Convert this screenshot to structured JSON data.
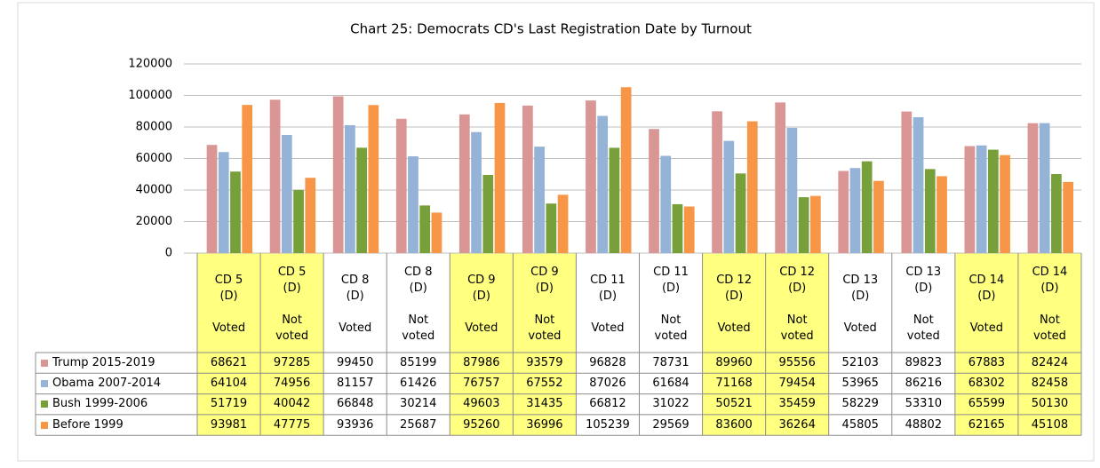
{
  "chart_data": {
    "type": "bar",
    "title": "Chart 25: Democrats CD's Last Registration Date by Turnout",
    "categories": [
      "CD 5\n(D)\n\nVoted",
      "CD 5\n(D)\n\nNot\nvoted",
      "CD 8\n(D)\n\nVoted",
      "CD 8\n(D)\n\nNot\nvoted",
      "CD 9\n(D)\n\nVoted",
      "CD 9\n(D)\n\nNot\nvoted",
      "CD 11\n(D)\n\nVoted",
      "CD 11\n(D)\n\nNot\nvoted",
      "CD 12\n(D)\n\nVoted",
      "CD 12\n(D)\n\nNot\nvoted",
      "CD 13\n(D)\n\nVoted",
      "CD 13\n(D)\n\nNot\nvoted",
      "CD 14\n(D)\n\nVoted",
      "CD 14\n(D)\n\nNot\nvoted"
    ],
    "series": [
      {
        "name": "Trump 2015-2019",
        "color": "#d99694",
        "values": [
          68621,
          97285,
          99450,
          85199,
          87986,
          93579,
          96828,
          78731,
          89960,
          95556,
          52103,
          89823,
          67883,
          82424
        ]
      },
      {
        "name": "Obama 2007-2014",
        "color": "#95b3d7",
        "values": [
          64104,
          74956,
          81157,
          61426,
          76757,
          67552,
          87026,
          61684,
          71168,
          79454,
          53965,
          86216,
          68302,
          82458
        ]
      },
      {
        "name": "Bush 1999-2006",
        "color": "#77a03a",
        "values": [
          51719,
          40042,
          66848,
          30214,
          49603,
          31435,
          66812,
          31022,
          50521,
          35459,
          58229,
          53310,
          65599,
          50130
        ]
      },
      {
        "name": "Before 1999",
        "color": "#f79646",
        "values": [
          93981,
          47775,
          93936,
          25687,
          95260,
          36996,
          105239,
          29569,
          83600,
          36264,
          45805,
          48802,
          62165,
          45108
        ]
      }
    ],
    "ylim": [
      0,
      120000
    ],
    "yticks": [
      0,
      20000,
      40000,
      60000,
      80000,
      100000,
      120000
    ],
    "grid": true,
    "highlight_color": "#ffff80",
    "highlighted_categories": [
      0,
      1,
      4,
      5,
      8,
      9,
      12,
      13
    ]
  }
}
